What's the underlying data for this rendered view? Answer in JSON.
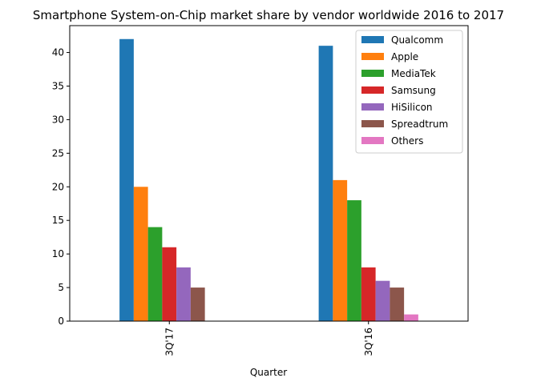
{
  "chart_data": {
    "type": "bar",
    "title": "Smartphone System-on-Chip market share by vendor worldwide 2016 to 2017",
    "xlabel": "Quarter",
    "ylabel": "",
    "categories": [
      "3Q'17",
      "3Q'16"
    ],
    "ylim": [
      0,
      44
    ],
    "yticks": [
      0,
      5,
      10,
      15,
      20,
      25,
      30,
      35,
      40
    ],
    "grid": false,
    "legend_position": "top-right",
    "series": [
      {
        "name": "Qualcomm",
        "color": "#1f77b4",
        "values": [
          42,
          41
        ]
      },
      {
        "name": "Apple",
        "color": "#ff7f0e",
        "values": [
          20,
          21
        ]
      },
      {
        "name": "MediaTek",
        "color": "#2ca02c",
        "values": [
          14,
          18
        ]
      },
      {
        "name": "Samsung",
        "color": "#d62728",
        "values": [
          11,
          8
        ]
      },
      {
        "name": "HiSilicon",
        "color": "#9467bd",
        "values": [
          8,
          6
        ]
      },
      {
        "name": "Spreadtrum",
        "color": "#8c564b",
        "values": [
          5,
          5
        ]
      },
      {
        "name": "Others",
        "color": "#e377c2",
        "values": [
          0,
          1
        ]
      }
    ]
  }
}
